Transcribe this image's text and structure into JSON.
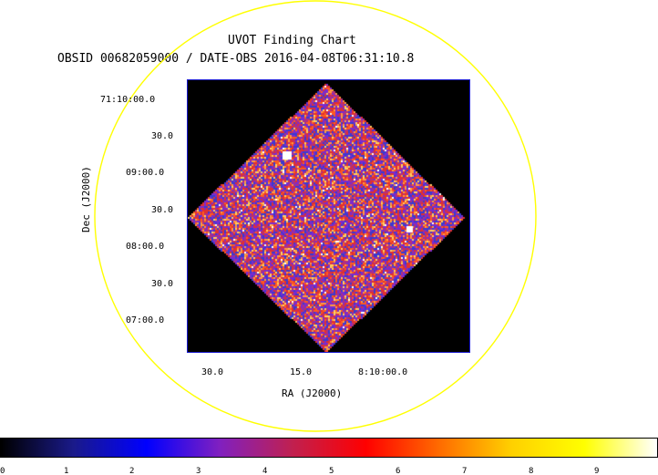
{
  "title": "UVOT Finding Chart",
  "subtitle": "OBSID 00682059000 / DATE-OBS 2016-04-08T06:31:10.8",
  "x_axis_label": "RA (J2000)",
  "y_axis_label": "Dec (J2000)",
  "dec_ticks": [
    "71:10:00.0",
    "30.0",
    "09:00.0",
    "30.0",
    "08:00.0",
    "30.0",
    "07:00.0"
  ],
  "ra_ticks": [
    "30.0",
    "15.0",
    "8:10:00.0"
  ],
  "colorbar": {
    "ticks": [
      "0",
      "1",
      "2",
      "3",
      "4",
      "5",
      "6",
      "7",
      "8",
      "9"
    ],
    "colors": [
      "#000000",
      "#1a1a8a",
      "#0000ff",
      "#8020c0",
      "#c02050",
      "#ff0000",
      "#ff6a00",
      "#ffd000",
      "#ffff00",
      "#ffffff"
    ]
  },
  "colors": {
    "circle": "#ffff00",
    "frame": "#1b1bd0",
    "pixel_palette": [
      "#3a3ad0",
      "#7a2ad0",
      "#b03080",
      "#e03030",
      "#ff5a20",
      "#ff9a40",
      "#ffd060",
      "#ffffff"
    ]
  }
}
